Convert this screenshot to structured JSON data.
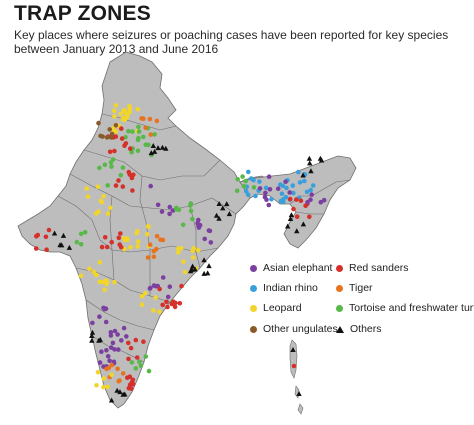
{
  "header": {
    "title": "TRAP ZONES",
    "subtitle": "Key places where seizures or poaching cases have been reported for key species between January 2013 and June 2016"
  },
  "colors": {
    "land": "#bdbdbd",
    "border": "#6e6e6e",
    "asian_elephant": "#7b3fa0",
    "red_sanders": "#d6302a",
    "indian_rhino": "#3aa0dc",
    "tiger": "#e8731e",
    "leopard": "#f2d52a",
    "tortoise": "#58b848",
    "other_ungulates": "#8b5a2b",
    "others": "#111111"
  },
  "legend": [
    {
      "key": "asian_elephant",
      "label": "Asian elephant",
      "shape": "dot"
    },
    {
      "key": "red_sanders",
      "label": "Red sanders",
      "shape": "dot"
    },
    {
      "key": "indian_rhino",
      "label": "Indian rhino",
      "shape": "dot"
    },
    {
      "key": "tiger",
      "label": "Tiger",
      "shape": "dot"
    },
    {
      "key": "leopard",
      "label": "Leopard",
      "shape": "dot"
    },
    {
      "key": "tortoise",
      "label": "Tortoise and freshwater turtles",
      "shape": "dot"
    },
    {
      "key": "other_ungulates",
      "label": "Other ungulates",
      "shape": "dot"
    },
    {
      "key": "others",
      "label": "Others",
      "shape": "triangle"
    }
  ]
}
